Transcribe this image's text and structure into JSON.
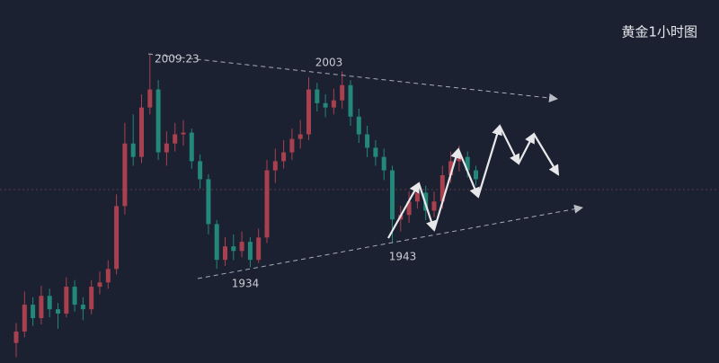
{
  "chart_data": {
    "type": "candlestick",
    "title": "黄金1小时图",
    "up_color": "#a8404f",
    "down_color": "#23887a",
    "ylim": [
      1901,
      2028
    ],
    "open": [
      1908.0,
      1912.0,
      1921.4,
      1916.7,
      1924.5,
      1919.8,
      1918.3,
      1927.7,
      1921.4,
      1919.8,
      1927.7,
      1929.2,
      1933.9,
      1955.9,
      1977.8,
      1973.1,
      1990.4,
      1996.7,
      1974.7,
      1977.8,
      1981.0,
      1981.6,
      1971.6,
      1965.3,
      1949.6,
      1937.1,
      1941.8,
      1940.2,
      1943.4,
      1937.1,
      1944.9,
      1968.4,
      1971.6,
      1974.7,
      1979.4,
      1981.0,
      1996.7,
      1991.9,
      1990.4,
      1992.9,
      1998.2,
      1987.2,
      1981.0,
      1976.3,
      1973.1,
      1968.4,
      1951.2,
      1952.8,
      1957.5,
      1960.6,
      1954.3,
      1957.5,
      1966.7,
      1971.6,
      1973.1,
      1968.4
    ],
    "high": [
      1915.0,
      1926.0,
      1924.0,
      1928.0,
      1927.0,
      1922.0,
      1931.0,
      1930.0,
      1924.0,
      1930.0,
      1933.0,
      1937.0,
      1960.0,
      1985.0,
      1988.0,
      1995.0,
      2009.23,
      2000.0,
      1982.0,
      1985.0,
      1986.0,
      1983.0,
      1974.0,
      1967.0,
      1951.0,
      1945.0,
      1946.0,
      1947.0,
      1945.0,
      1948.0,
      1972.0,
      1976.0,
      1979.0,
      1983.0,
      1986.0,
      2001.0,
      1999.0,
      1995.0,
      1997.0,
      2003.0,
      2000.0,
      1990.0,
      1984.0,
      1979.0,
      1976.0,
      1970.0,
      1956.0,
      1961.0,
      1964.0,
      1963.0,
      1961.0,
      1970.0,
      1975.0,
      1977.0,
      1975.0,
      1970.0
    ],
    "low": [
      1903.0,
      1910.0,
      1914.0,
      1914.5,
      1917.0,
      1913.0,
      1917.0,
      1919.0,
      1916.0,
      1918.0,
      1925.0,
      1927.0,
      1932.0,
      1953.0,
      1970.0,
      1971.0,
      1988.0,
      1972.0,
      1970.0,
      1975.0,
      1977.0,
      1969.0,
      1962.0,
      1946.0,
      1934.0,
      1935.0,
      1937.0,
      1938.0,
      1934.5,
      1936.0,
      1943.0,
      1964.0,
      1969.0,
      1972.0,
      1976.0,
      1979.0,
      1989.0,
      1987.0,
      1988.0,
      1990.0,
      1984.0,
      1978.0,
      1973.0,
      1970.0,
      1965.0,
      1943.0,
      1947.0,
      1950.0,
      1955.0,
      1951.0,
      1952.0,
      1955.0,
      1964.0,
      1968.0,
      1966.0,
      1963.0
    ],
    "close": [
      1912.0,
      1921.4,
      1916.7,
      1924.5,
      1919.8,
      1918.3,
      1927.7,
      1921.4,
      1919.8,
      1927.7,
      1929.2,
      1933.9,
      1955.9,
      1977.8,
      1973.1,
      1990.4,
      1996.7,
      1974.7,
      1977.8,
      1981.0,
      1981.6,
      1971.6,
      1965.3,
      1949.6,
      1937.1,
      1941.8,
      1940.2,
      1943.4,
      1937.1,
      1944.9,
      1968.4,
      1971.6,
      1974.7,
      1979.4,
      1981.0,
      1996.7,
      1991.9,
      1990.4,
      1992.9,
      1998.2,
      1987.2,
      1981.0,
      1976.3,
      1973.1,
      1968.4,
      1951.2,
      1952.8,
      1957.5,
      1960.6,
      1954.3,
      1957.5,
      1966.7,
      1971.6,
      1973.1,
      1968.4,
      1965.3
    ],
    "annotations": [
      "2009.23",
      "2003",
      "1943",
      "1934"
    ]
  }
}
